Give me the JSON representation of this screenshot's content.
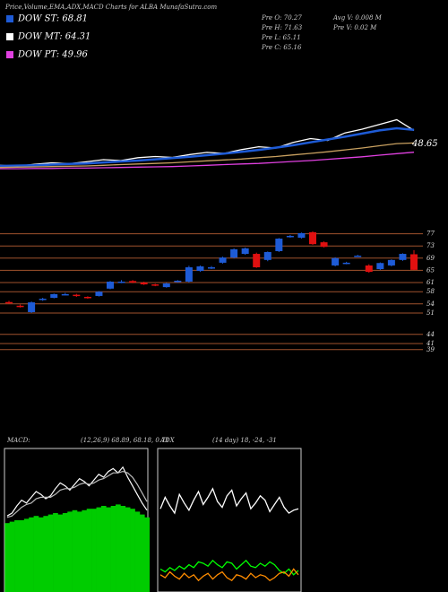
{
  "header": {
    "title": "Price,Volume,EMA,ADX,MACD Charts for ALBA MunafaSutra.com",
    "legend": [
      {
        "label": "DOW ST: 68.81",
        "color": "#1e5bd6"
      },
      {
        "label": "DOW MT: 64.31",
        "color": "#ffffff"
      },
      {
        "label": "DOW PT: 49.96",
        "color": "#e040e0"
      }
    ],
    "ohlc": [
      "Pre  O: 70.27",
      "Pre  H: 71.63",
      "Pre  L: 65.11",
      "Pre  C: 65.16"
    ],
    "volume": [
      "Avg V: 0.008 M",
      "Pre  V: 0.02  M"
    ]
  },
  "chart_data": [
    {
      "type": "line",
      "ylim": [
        40,
        80
      ],
      "series": [
        {
          "name": "Price",
          "color": "#ffffff",
          "values": [
            44.5,
            44.2,
            44.8,
            45.3,
            45.0,
            45.6,
            46.3,
            46.0,
            46.9,
            47.3,
            47.0,
            47.9,
            48.6,
            48.3,
            49.5,
            50.4,
            50.0,
            51.8,
            53.0,
            52.4,
            54.8,
            56.0,
            57.5,
            59.0,
            55.6
          ]
        },
        {
          "name": "EMA short",
          "color": "#1e5bd6",
          "values": [
            44.3,
            44.4,
            44.5,
            44.7,
            44.9,
            45.1,
            45.4,
            45.7,
            46.0,
            46.4,
            46.8,
            47.2,
            47.7,
            48.2,
            48.8,
            49.4,
            50.1,
            50.9,
            51.8,
            52.7,
            53.6,
            54.6,
            55.6,
            56.3,
            55.8
          ]
        },
        {
          "name": "EMA mid",
          "color": "#c8a060",
          "values": [
            43.8,
            43.9,
            44.0,
            44.1,
            44.2,
            44.3,
            44.5,
            44.7,
            44.9,
            45.1,
            45.3,
            45.6,
            45.9,
            46.2,
            46.5,
            46.9,
            47.3,
            47.8,
            48.3,
            48.8,
            49.4,
            50.0,
            50.7,
            51.4,
            51.6
          ]
        },
        {
          "name": "EMA long",
          "color": "#e040e0",
          "values": [
            43.4,
            43.4,
            43.5,
            43.5,
            43.6,
            43.6,
            43.7,
            43.8,
            43.9,
            44.0,
            44.1,
            44.3,
            44.5,
            44.7,
            44.9,
            45.1,
            45.4,
            45.7,
            46.0,
            46.4,
            46.8,
            47.2,
            47.7,
            48.2,
            48.65
          ]
        }
      ]
    },
    {
      "type": "candlestick",
      "ylim": [
        36,
        86
      ],
      "yticks": [
        77,
        73,
        69,
        65,
        61,
        58,
        54,
        51,
        44,
        41,
        39
      ],
      "up_color": "#1e5bd6",
      "down_color": "#e01010",
      "grid_color": "#a0522d",
      "open": [
        54.6,
        53.4,
        51.3,
        55.3,
        56.0,
        57.0,
        57.0,
        56.3,
        56.6,
        59.0,
        61.0,
        61.5,
        61.0,
        60.4,
        59.5,
        61.3,
        61.3,
        64.8,
        65.8,
        67.5,
        69.2,
        70.4,
        70.4,
        68.4,
        71.3,
        76.0,
        75.7,
        77.5,
        74.2,
        66.6,
        67.3,
        69.6,
        66.6,
        65.4,
        66.6,
        68.4,
        70.27
      ],
      "high": [
        55.0,
        53.8,
        54.8,
        56.0,
        57.4,
        57.6,
        57.3,
        56.5,
        58.2,
        61.5,
        61.8,
        61.8,
        61.3,
        60.6,
        60.9,
        61.8,
        66.5,
        66.6,
        66.4,
        69.5,
        72.2,
        72.5,
        70.8,
        71.2,
        75.6,
        76.6,
        77.4,
        77.8,
        74.5,
        69.3,
        67.8,
        70.1,
        67.0,
        67.6,
        68.6,
        70.6,
        71.63
      ],
      "low": [
        54.0,
        52.8,
        51.0,
        55.0,
        55.8,
        56.8,
        56.3,
        55.7,
        56.4,
        58.8,
        60.8,
        60.8,
        60.2,
        59.8,
        59.3,
        61.0,
        61.0,
        64.5,
        65.4,
        67.2,
        68.9,
        70.1,
        65.8,
        68.0,
        71.0,
        75.7,
        75.4,
        73.4,
        72.5,
        66.3,
        67.0,
        69.4,
        64.2,
        65.1,
        66.3,
        68.1,
        65.11
      ],
      "close": [
        54.2,
        53.0,
        54.5,
        55.7,
        57.2,
        57.2,
        56.6,
        56.0,
        58.0,
        61.3,
        61.3,
        61.0,
        60.4,
        60.1,
        60.7,
        61.6,
        66.0,
        66.3,
        66.0,
        69.2,
        71.9,
        72.2,
        66.0,
        71.0,
        75.4,
        76.3,
        77.2,
        73.6,
        72.7,
        69.0,
        67.5,
        69.8,
        64.5,
        67.4,
        68.4,
        70.4,
        65.16
      ]
    },
    {
      "type": "macd",
      "title": "MACD:",
      "subtitle": "(12,26,9) 68.89, 68.18, 0.71",
      "ylim": [
        0,
        100
      ],
      "series": [
        {
          "name": "Histogram",
          "type": "bar",
          "color": "#00cc00",
          "values": [
            48,
            49,
            50,
            50,
            51,
            52,
            53,
            52,
            53,
            54,
            55,
            54,
            55,
            56,
            57,
            56,
            57,
            58,
            58,
            59,
            60,
            59,
            60,
            61,
            60,
            59,
            58,
            56,
            54,
            52
          ]
        },
        {
          "name": "MACD",
          "type": "line",
          "color": "#ffffff",
          "values": [
            53,
            55,
            60,
            64,
            62,
            66,
            70,
            68,
            65,
            67,
            72,
            76,
            74,
            71,
            75,
            79,
            77,
            74,
            78,
            82,
            80,
            84,
            86,
            83,
            87,
            80,
            74,
            68,
            62,
            57
          ]
        },
        {
          "name": "Signal",
          "type": "line",
          "color": "#bbbbbb",
          "values": [
            52,
            53,
            56,
            59,
            61,
            62,
            65,
            66,
            66,
            66,
            68,
            71,
            72,
            72,
            73,
            75,
            76,
            75,
            76,
            78,
            79,
            81,
            83,
            83,
            84,
            83,
            80,
            75,
            69,
            63
          ]
        }
      ]
    },
    {
      "type": "line",
      "title": "ADX",
      "subtitle": "(14 day) 18, -24, -31",
      "ylim": [
        0,
        100
      ],
      "series": [
        {
          "name": "ADX",
          "color": "#ffffff",
          "values": [
            58,
            66,
            60,
            55,
            68,
            62,
            57,
            64,
            70,
            61,
            66,
            72,
            63,
            59,
            67,
            71,
            60,
            65,
            69,
            58,
            62,
            67,
            64,
            56,
            61,
            66,
            59,
            55,
            57,
            58
          ]
        },
        {
          "name": "+DI",
          "color": "#00ff00",
          "values": [
            16,
            14,
            17,
            15,
            18,
            16,
            19,
            17,
            21,
            20,
            18,
            22,
            19,
            17,
            21,
            20,
            16,
            19,
            22,
            18,
            17,
            20,
            18,
            21,
            19,
            15,
            13,
            16,
            12,
            15
          ]
        },
        {
          "name": "-DI",
          "color": "#ff8c00",
          "values": [
            12,
            10,
            14,
            11,
            9,
            13,
            10,
            12,
            8,
            11,
            13,
            9,
            12,
            14,
            10,
            8,
            12,
            11,
            9,
            13,
            10,
            12,
            11,
            8,
            10,
            13,
            14,
            11,
            16,
            12
          ]
        }
      ]
    }
  ]
}
